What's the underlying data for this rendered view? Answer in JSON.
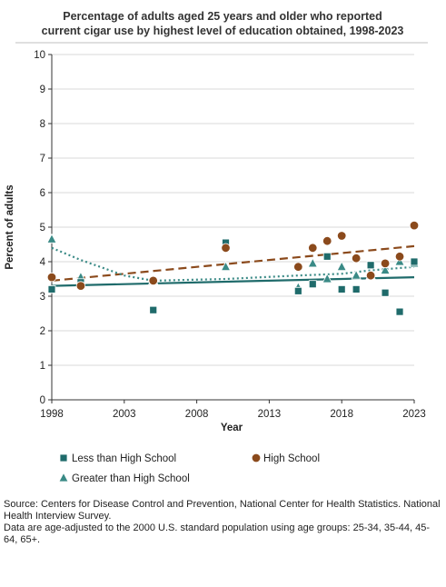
{
  "chart_data": {
    "type": "scatter",
    "title_lines": [
      "Percentage of adults aged 25 years and older who reported",
      "current cigar use by highest level of education obtained, 1998-2023"
    ],
    "xlabel": "Year",
    "ylabel": "Percent of adults",
    "xlim": [
      1998,
      2023
    ],
    "ylim": [
      0,
      10
    ],
    "x_ticks": [
      1998,
      2003,
      2008,
      2013,
      2018,
      2023
    ],
    "y_ticks": [
      0,
      1,
      2,
      3,
      4,
      5,
      6,
      7,
      8,
      9,
      10
    ],
    "grid": "horizontal",
    "legend_position": "bottom",
    "series": [
      {
        "name": "Less than High School",
        "marker": "square",
        "color": "#1f6b6b",
        "trend_style": "solid",
        "x": [
          1998,
          2000,
          2005,
          2010,
          2015,
          2016,
          2017,
          2018,
          2019,
          2020,
          2021,
          2022,
          2023
        ],
        "y": [
          3.2,
          3.4,
          2.6,
          4.55,
          3.15,
          3.35,
          4.15,
          3.2,
          3.2,
          3.9,
          3.1,
          2.55,
          4.0
        ],
        "trend": [
          3.3,
          3.55
        ]
      },
      {
        "name": "High School",
        "marker": "circle",
        "color": "#8b4a1c",
        "trend_style": "dashed",
        "x": [
          1998,
          2000,
          2005,
          2010,
          2015,
          2016,
          2017,
          2018,
          2019,
          2020,
          2021,
          2022,
          2023
        ],
        "y": [
          3.55,
          3.3,
          3.45,
          4.4,
          3.85,
          4.4,
          4.6,
          4.75,
          4.1,
          3.6,
          3.95,
          4.15,
          5.05
        ],
        "trend": [
          3.45,
          4.45
        ]
      },
      {
        "name": "Greater than High School",
        "marker": "triangle",
        "color": "#3a8a86",
        "trend_style": "dotted",
        "x": [
          1998,
          2000,
          2005,
          2010,
          2015,
          2016,
          2017,
          2018,
          2019,
          2020,
          2021,
          2022,
          2023
        ],
        "y": [
          4.65,
          3.55,
          3.45,
          3.85,
          3.25,
          3.95,
          3.5,
          3.85,
          3.6,
          3.6,
          3.75,
          4.0,
          3.95
        ],
        "trend_points": [
          [
            1998,
            4.4
          ],
          [
            2000,
            4.05
          ],
          [
            2003,
            3.6
          ],
          [
            2005,
            3.45
          ],
          [
            2010,
            3.5
          ],
          [
            2015,
            3.6
          ],
          [
            2018,
            3.65
          ],
          [
            2020,
            3.75
          ],
          [
            2023,
            3.85
          ]
        ]
      }
    ]
  },
  "source_lines": [
    "Source: Centers for Disease Control and Prevention, National Center for Health Statistics. National Health Interview Survey.",
    "Data are age-adjusted to the 2000 U.S. standard population using age groups: 25-34, 35-44, 45-64, 65+."
  ]
}
